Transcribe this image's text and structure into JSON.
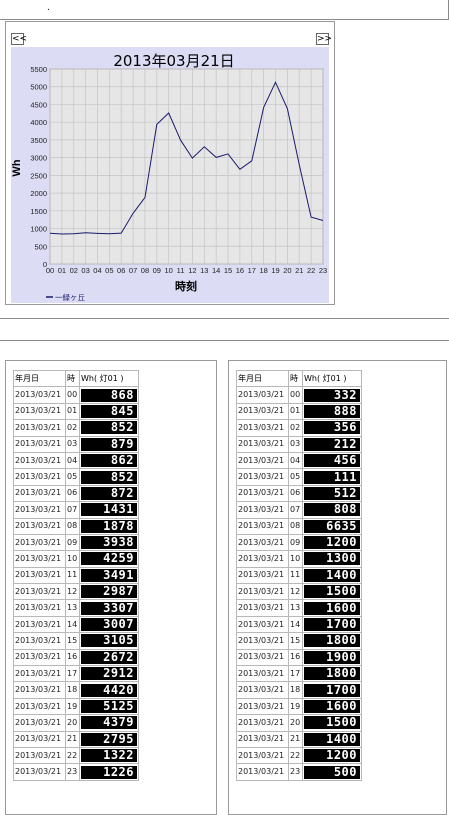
{
  "page": {
    "marker": "."
  },
  "nav": {
    "prev_label": "<<",
    "next_label": ">>"
  },
  "chart_data": {
    "type": "line",
    "title": "2013年03月21日",
    "xlabel": "時刻",
    "ylabel": "Wh",
    "categories": [
      "00",
      "01",
      "02",
      "03",
      "04",
      "05",
      "06",
      "07",
      "08",
      "09",
      "10",
      "11",
      "12",
      "13",
      "14",
      "15",
      "16",
      "17",
      "18",
      "19",
      "20",
      "21",
      "22",
      "23"
    ],
    "series": [
      {
        "name": "一緑ヶ丘",
        "values": [
          868,
          845,
          852,
          879,
          862,
          852,
          872,
          1431,
          1878,
          3938,
          4259,
          3491,
          2987,
          3307,
          3007,
          3105,
          2672,
          2912,
          4420,
          5125,
          4379,
          2795,
          1322,
          1226
        ],
        "color": "#1a1a6e"
      }
    ],
    "ylim": [
      0,
      5500
    ],
    "yticks": [
      0,
      500,
      1000,
      1500,
      2000,
      2500,
      3000,
      3500,
      4000,
      4500,
      5000,
      5500
    ],
    "grid": true,
    "legend": "bottom-left",
    "plot_bg": "#e6e6e6",
    "frame_bg": "#dcdcf4"
  },
  "tables": [
    {
      "headers": [
        "年月日",
        "時",
        "Wh( 灯01 )"
      ],
      "rows": [
        [
          "2013/03/21",
          "00",
          "868"
        ],
        [
          "2013/03/21",
          "01",
          "845"
        ],
        [
          "2013/03/21",
          "02",
          "852"
        ],
        [
          "2013/03/21",
          "03",
          "879"
        ],
        [
          "2013/03/21",
          "04",
          "862"
        ],
        [
          "2013/03/21",
          "05",
          "852"
        ],
        [
          "2013/03/21",
          "06",
          "872"
        ],
        [
          "2013/03/21",
          "07",
          "1431"
        ],
        [
          "2013/03/21",
          "08",
          "1878"
        ],
        [
          "2013/03/21",
          "09",
          "3938"
        ],
        [
          "2013/03/21",
          "10",
          "4259"
        ],
        [
          "2013/03/21",
          "11",
          "3491"
        ],
        [
          "2013/03/21",
          "12",
          "2987"
        ],
        [
          "2013/03/21",
          "13",
          "3307"
        ],
        [
          "2013/03/21",
          "14",
          "3007"
        ],
        [
          "2013/03/21",
          "15",
          "3105"
        ],
        [
          "2013/03/21",
          "16",
          "2672"
        ],
        [
          "2013/03/21",
          "17",
          "2912"
        ],
        [
          "2013/03/21",
          "18",
          "4420"
        ],
        [
          "2013/03/21",
          "19",
          "5125"
        ],
        [
          "2013/03/21",
          "20",
          "4379"
        ],
        [
          "2013/03/21",
          "21",
          "2795"
        ],
        [
          "2013/03/21",
          "22",
          "1322"
        ],
        [
          "2013/03/21",
          "23",
          "1226"
        ]
      ]
    },
    {
      "headers": [
        "年月日",
        "時",
        "Wh( 灯01 )"
      ],
      "rows": [
        [
          "2013/03/21",
          "00",
          "332"
        ],
        [
          "2013/03/21",
          "01",
          "888"
        ],
        [
          "2013/03/21",
          "02",
          "356"
        ],
        [
          "2013/03/21",
          "03",
          "212"
        ],
        [
          "2013/03/21",
          "04",
          "456"
        ],
        [
          "2013/03/21",
          "05",
          "111"
        ],
        [
          "2013/03/21",
          "06",
          "512"
        ],
        [
          "2013/03/21",
          "07",
          "808"
        ],
        [
          "2013/03/21",
          "08",
          "6635"
        ],
        [
          "2013/03/21",
          "09",
          "1200"
        ],
        [
          "2013/03/21",
          "10",
          "1300"
        ],
        [
          "2013/03/21",
          "11",
          "1400"
        ],
        [
          "2013/03/21",
          "12",
          "1500"
        ],
        [
          "2013/03/21",
          "13",
          "1600"
        ],
        [
          "2013/03/21",
          "14",
          "1700"
        ],
        [
          "2013/03/21",
          "15",
          "1800"
        ],
        [
          "2013/03/21",
          "16",
          "1900"
        ],
        [
          "2013/03/21",
          "17",
          "1800"
        ],
        [
          "2013/03/21",
          "18",
          "1700"
        ],
        [
          "2013/03/21",
          "19",
          "1600"
        ],
        [
          "2013/03/21",
          "20",
          "1500"
        ],
        [
          "2013/03/21",
          "21",
          "1400"
        ],
        [
          "2013/03/21",
          "22",
          "1200"
        ],
        [
          "2013/03/21",
          "23",
          "500"
        ]
      ]
    }
  ]
}
